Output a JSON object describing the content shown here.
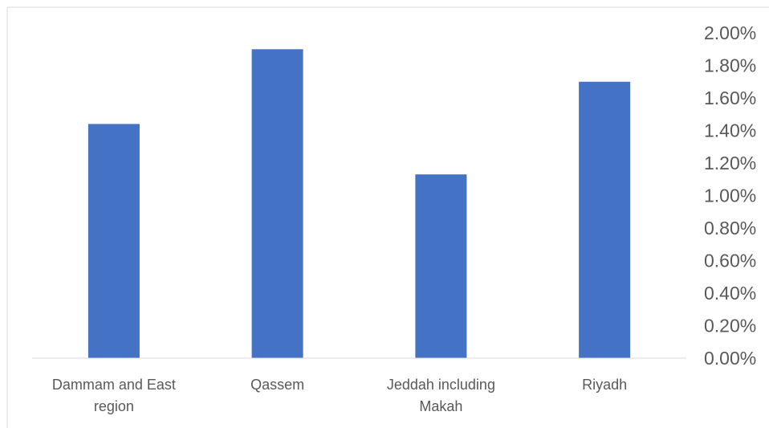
{
  "chart_data": {
    "type": "bar",
    "categories": [
      [
        "Dammam and East",
        "region"
      ],
      [
        "Qassem"
      ],
      [
        "Jeddah including",
        "Makah"
      ],
      [
        "Riyadh"
      ]
    ],
    "values": [
      1.44,
      1.9,
      1.13,
      1.7
    ],
    "value_unit": "percent",
    "ylim": [
      0,
      2.0
    ],
    "y_tick_step": 0.2,
    "y_tick_labels": [
      "0.00%",
      "0.20%",
      "0.40%",
      "0.60%",
      "0.80%",
      "1.00%",
      "1.20%",
      "1.40%",
      "1.60%",
      "1.80%",
      "2.00%"
    ],
    "y_axis_side": "right",
    "grid": false,
    "legend": "none",
    "bar_color": "#4472C4",
    "axis_color": "#D9D9D9",
    "frame_color": "#D9D9D9",
    "text_color": "#595959"
  }
}
